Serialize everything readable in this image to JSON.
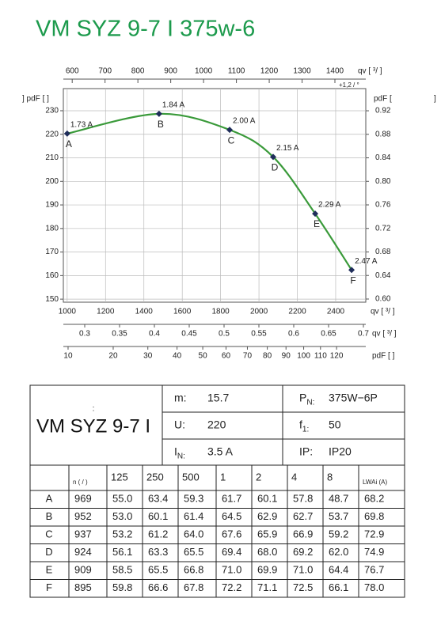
{
  "title": "VM SYZ 9-7 I 375w-6",
  "chart_data": {
    "type": "line",
    "x_label": "qv [   ³/   ]",
    "x2_label": "qv [   ³/   ]",
    "x2_note": "+1,2  /  °",
    "x3_label": "qv [   ³/   ]",
    "x4_label": "pdF [    ]",
    "y_label": "] pdF [   ]",
    "y2_label": "pdF [",
    "y2_label_end": "]",
    "xlim": [
      980,
      2557
    ],
    "xticks": [
      1000,
      1200,
      1400,
      1600,
      1800,
      2000,
      2200,
      2400
    ],
    "x2lim": [
      573,
      1494
    ],
    "x2ticks": [
      600,
      700,
      800,
      900,
      1000,
      1100,
      1200,
      1300,
      1400
    ],
    "x3lim": [
      0.2693,
      0.7034
    ],
    "x3ticks": [
      0.3,
      0.35,
      0.4,
      0.45,
      0.5,
      0.55,
      0.6,
      0.65,
      0.7
    ],
    "x4lim": [
      9.15,
      139.3
    ],
    "x4scale": "sqrt",
    "x4ticks": [
      10,
      20,
      30,
      40,
      50,
      60,
      70,
      80,
      90,
      100,
      110,
      120
    ],
    "ylim": [
      148.7,
      239.4
    ],
    "yticks": [
      150,
      160,
      170,
      180,
      190,
      200,
      210,
      220,
      230
    ],
    "y2lim": [
      0.5946,
      0.9577
    ],
    "y2ticks": [
      {
        "value": 0.6,
        "label": "0.60"
      },
      0.64,
      0.68,
      0.72,
      0.76,
      {
        "value": 0.8,
        "label": "0.80"
      },
      0.84,
      0.88,
      0.92
    ],
    "grid": true,
    "series": [
      {
        "name": "VM SYZ 9-7 I",
        "color": "#3a9a3a",
        "marker_color": "#1f2d5a",
        "x": [
          1000,
          1479,
          1847,
          2074,
          2293,
          2483
        ],
        "values": [
          220.3,
          228.7,
          221.9,
          210.4,
          186.3,
          162.4
        ],
        "point_names": [
          "A",
          "B",
          "C",
          "D",
          "E",
          "F"
        ],
        "currents": [
          "1.73 A",
          "1.84 A",
          "2.00 A",
          "2.15 A",
          "2.29 A",
          "2.47 A"
        ]
      }
    ]
  },
  "specs": [
    {
      "label": "m:",
      "value": "15.7"
    },
    {
      "label": "U:",
      "value": "220"
    },
    {
      "label": "I",
      "sub": "N:",
      "value": "3.5 A"
    },
    {
      "label": "P",
      "sub": "N:",
      "value": "375W−6P"
    },
    {
      "label": "f",
      "sub": "1:",
      "value": "50"
    },
    {
      "label": "IP:",
      "value": "IP20"
    }
  ],
  "table": {
    "title_mark": ":",
    "title": "VM SYZ 9-7 I",
    "header": [
      "n (  /  )",
      "125",
      "250",
      "500",
      "1",
      "2",
      "4",
      "8",
      "LWAi    (A)"
    ],
    "rows": [
      [
        "A",
        "969",
        "55.0",
        "63.4",
        "59.3",
        "61.7",
        "60.1",
        "57.8",
        "48.7",
        "68.2"
      ],
      [
        "B",
        "952",
        "53.0",
        "60.1",
        "61.4",
        "64.5",
        "62.9",
        "62.7",
        "53.7",
        "69.8"
      ],
      [
        "C",
        "937",
        "53.2",
        "61.2",
        "64.0",
        "67.6",
        "65.9",
        "66.9",
        "59.2",
        "72.9"
      ],
      [
        "D",
        "924",
        "56.1",
        "63.3",
        "65.5",
        "69.4",
        "68.0",
        "69.2",
        "62.0",
        "74.9"
      ],
      [
        "E",
        "909",
        "58.5",
        "65.5",
        "66.8",
        "71.0",
        "69.9",
        "71.0",
        "64.4",
        "76.7"
      ],
      [
        "F",
        "895",
        "59.8",
        "66.6",
        "67.8",
        "72.2",
        "71.1",
        "72.5",
        "66.1",
        "78.0"
      ]
    ]
  }
}
